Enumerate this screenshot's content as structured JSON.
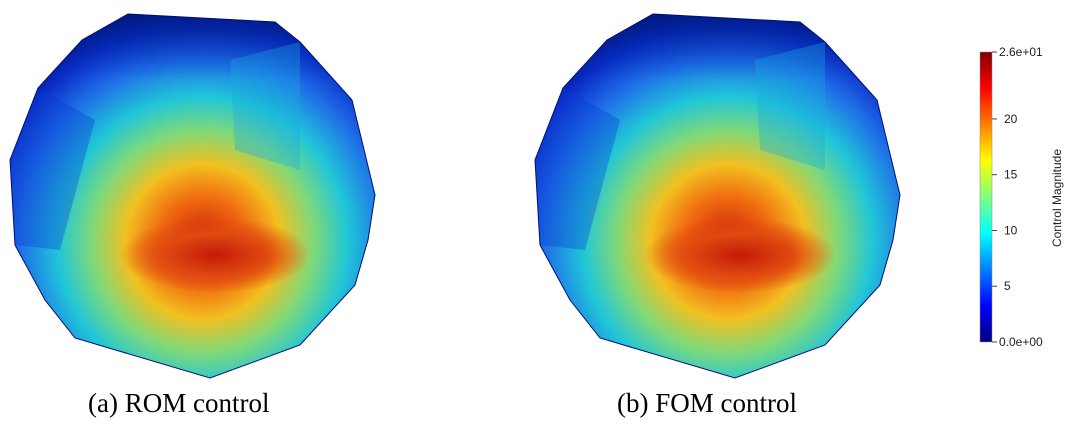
{
  "panels": [
    {
      "caption": "(a) ROM control"
    },
    {
      "caption": "(b) FOM control"
    }
  ],
  "colorbar": {
    "title": "Control Magnitude",
    "min_label": "0.0e+00",
    "max_label": "2.6e+01",
    "ticks": [
      "5",
      "10",
      "15",
      "20"
    ],
    "min": 0,
    "max": 26,
    "tick_values": [
      5,
      10,
      15,
      20
    ],
    "colormap": [
      "#00007f",
      "#0000ff",
      "#0080ff",
      "#00ffff",
      "#80ff80",
      "#ffff00",
      "#ff8000",
      "#ff0000",
      "#7f0000"
    ]
  },
  "colors": {
    "peak": "#cc1a0a",
    "edge": "#001a9e"
  }
}
